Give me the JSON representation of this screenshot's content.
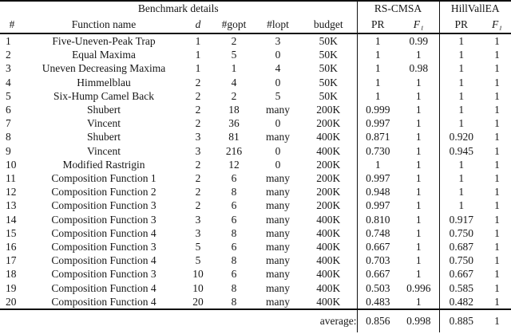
{
  "table": {
    "group_headers": {
      "benchmark": "Benchmark details",
      "rs_cmsa": "RS-CMSA",
      "hillvallea": "HillVallEA"
    },
    "columns": {
      "num": "#",
      "function_name": "Function name",
      "d": "d",
      "gopt": "#gopt",
      "lopt": "#lopt",
      "budget": "budget",
      "pr_rs": "PR",
      "f1_rs": "F₁",
      "pr_hv": "PR",
      "f1_hv": "F₁"
    },
    "rows": [
      [
        "1",
        "Five-Uneven-Peak Trap",
        "1",
        "2",
        "3",
        "50K",
        "1",
        "0.99",
        "1",
        "1"
      ],
      [
        "2",
        "Equal Maxima",
        "1",
        "5",
        "0",
        "50K",
        "1",
        "1",
        "1",
        "1"
      ],
      [
        "3",
        "Uneven Decreasing Maxima",
        "1",
        "1",
        "4",
        "50K",
        "1",
        "0.98",
        "1",
        "1"
      ],
      [
        "4",
        "Himmelblau",
        "2",
        "4",
        "0",
        "50K",
        "1",
        "1",
        "1",
        "1"
      ],
      [
        "5",
        "Six-Hump Camel Back",
        "2",
        "2",
        "5",
        "50K",
        "1",
        "1",
        "1",
        "1"
      ],
      [
        "6",
        "Shubert",
        "2",
        "18",
        "many",
        "200K",
        "0.999",
        "1",
        "1",
        "1"
      ],
      [
        "7",
        "Vincent",
        "2",
        "36",
        "0",
        "200K",
        "0.997",
        "1",
        "1",
        "1"
      ],
      [
        "8",
        "Shubert",
        "3",
        "81",
        "many",
        "400K",
        "0.871",
        "1",
        "0.920",
        "1"
      ],
      [
        "9",
        "Vincent",
        "3",
        "216",
        "0",
        "400K",
        "0.730",
        "1",
        "0.945",
        "1"
      ],
      [
        "10",
        "Modified Rastrigin",
        "2",
        "12",
        "0",
        "200K",
        "1",
        "1",
        "1",
        "1"
      ],
      [
        "11",
        "Composition Function 1",
        "2",
        "6",
        "many",
        "200K",
        "0.997",
        "1",
        "1",
        "1"
      ],
      [
        "12",
        "Composition Function 2",
        "2",
        "8",
        "many",
        "200K",
        "0.948",
        "1",
        "1",
        "1"
      ],
      [
        "13",
        "Composition Function 3",
        "2",
        "6",
        "many",
        "200K",
        "0.997",
        "1",
        "1",
        "1"
      ],
      [
        "14",
        "Composition Function 3",
        "3",
        "6",
        "many",
        "400K",
        "0.810",
        "1",
        "0.917",
        "1"
      ],
      [
        "15",
        "Composition Function 4",
        "3",
        "8",
        "many",
        "400K",
        "0.748",
        "1",
        "0.750",
        "1"
      ],
      [
        "16",
        "Composition Function 3",
        "5",
        "6",
        "many",
        "400K",
        "0.667",
        "1",
        "0.687",
        "1"
      ],
      [
        "17",
        "Composition Function 4",
        "5",
        "8",
        "many",
        "400K",
        "0.703",
        "1",
        "0.750",
        "1"
      ],
      [
        "18",
        "Composition Function 3",
        "10",
        "6",
        "many",
        "400K",
        "0.667",
        "1",
        "0.667",
        "1"
      ],
      [
        "19",
        "Composition Function 4",
        "10",
        "8",
        "many",
        "400K",
        "0.503",
        "0.996",
        "0.585",
        "1"
      ],
      [
        "20",
        "Composition Function 4",
        "20",
        "8",
        "many",
        "400K",
        "0.483",
        "1",
        "0.482",
        "1"
      ]
    ],
    "footer": {
      "label": "average:",
      "values": [
        "0.856",
        "0.998",
        "0.885",
        "1"
      ]
    }
  }
}
